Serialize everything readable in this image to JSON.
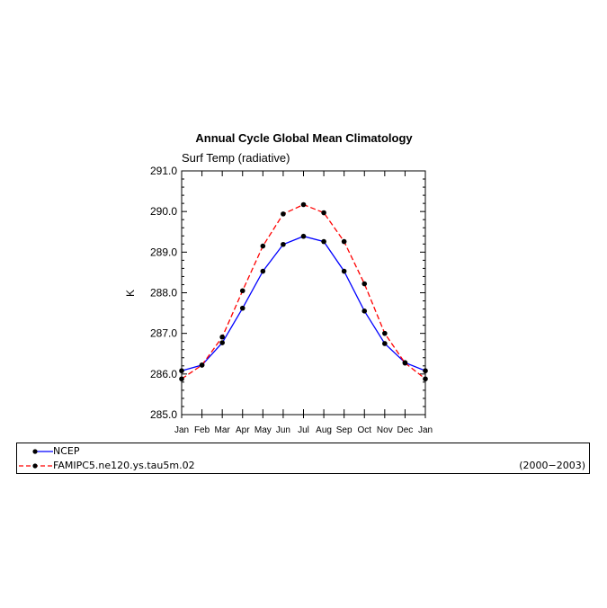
{
  "chart_data": {
    "type": "line",
    "title": "Annual Cycle Global Mean Climatology",
    "subtitle": "Surf Temp (radiative)",
    "xlabel": "",
    "ylabel": "K",
    "categories": [
      "Jan",
      "Feb",
      "Mar",
      "Apr",
      "May",
      "Jun",
      "Jul",
      "Aug",
      "Sep",
      "Oct",
      "Nov",
      "Dec",
      "Jan"
    ],
    "ylim": [
      285.0,
      291.0
    ],
    "yticks": [
      "285.0",
      "286.0",
      "287.0",
      "288.0",
      "289.0",
      "290.0",
      "291.0"
    ],
    "grid": false,
    "series": [
      {
        "name": "NCEP",
        "color": "#0000ff",
        "dash": "solid",
        "values": [
          286.08,
          286.22,
          286.77,
          287.62,
          288.53,
          289.19,
          289.39,
          289.26,
          288.53,
          287.55,
          286.75,
          286.28,
          286.08
        ]
      },
      {
        "name": "FAMIPC5.ne120.ys.tau5m.02",
        "color": "#ff0000",
        "dash": "dashed",
        "values": [
          285.88,
          286.22,
          286.91,
          288.05,
          289.15,
          289.94,
          290.17,
          289.97,
          289.26,
          288.22,
          287.0,
          286.27,
          285.88
        ]
      }
    ]
  },
  "legend": {
    "entries": [
      {
        "label": "NCEP",
        "period": ""
      },
      {
        "label": "FAMIPC5.ne120.ys.tau5m.02",
        "period": "(2000−2003)"
      }
    ]
  }
}
